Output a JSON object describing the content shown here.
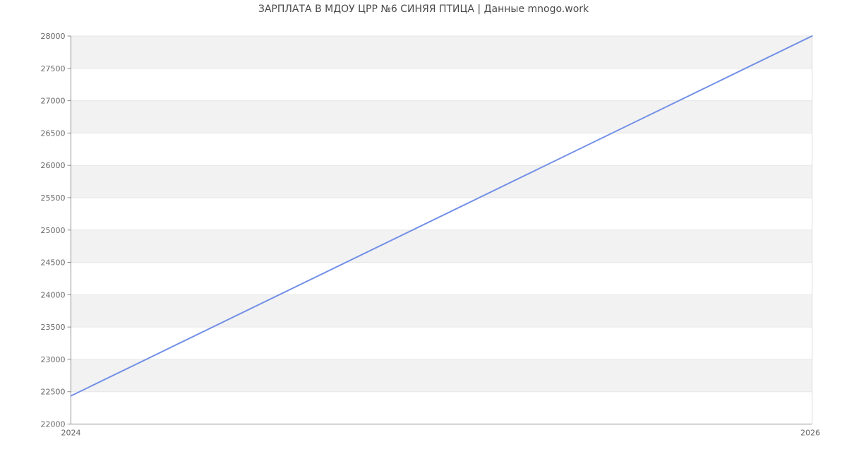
{
  "chart": {
    "title": "ЗАРПЛАТА В МДОУ ЦРР №6 СИНЯЯ ПТИЦА | Данные mnogo.work"
  },
  "chart_data": {
    "type": "line",
    "title": "ЗАРПЛАТА В МДОУ ЦРР №6 СИНЯЯ ПТИЦА | Данные mnogo.work",
    "series": [
      {
        "name": "salary",
        "x": [
          2024,
          2026
        ],
        "values": [
          22435,
          28000
        ]
      }
    ],
    "xlim": [
      2024,
      2026
    ],
    "ylim": [
      22000,
      28000
    ],
    "ytick_step": 500,
    "yticklabels": [
      "22000",
      "22500",
      "23000",
      "23500",
      "24000",
      "24500",
      "25000",
      "25500",
      "26000",
      "26500",
      "27000",
      "27500",
      "28000"
    ],
    "xticklabels": [
      "2024",
      "2026"
    ],
    "xlabel": "",
    "ylabel": "",
    "legend": "none",
    "grid": "horizontal gridlines with alternating shaded bands",
    "colors": {
      "line": "#7390e8",
      "band": "#f2f2f2",
      "grid": "#e6e6e6",
      "axis": "#8c8c8c",
      "tick_label": "#666666",
      "title": "#4a4a4a",
      "plot_border": "#d9d9d9",
      "background": "#ffffff"
    }
  }
}
